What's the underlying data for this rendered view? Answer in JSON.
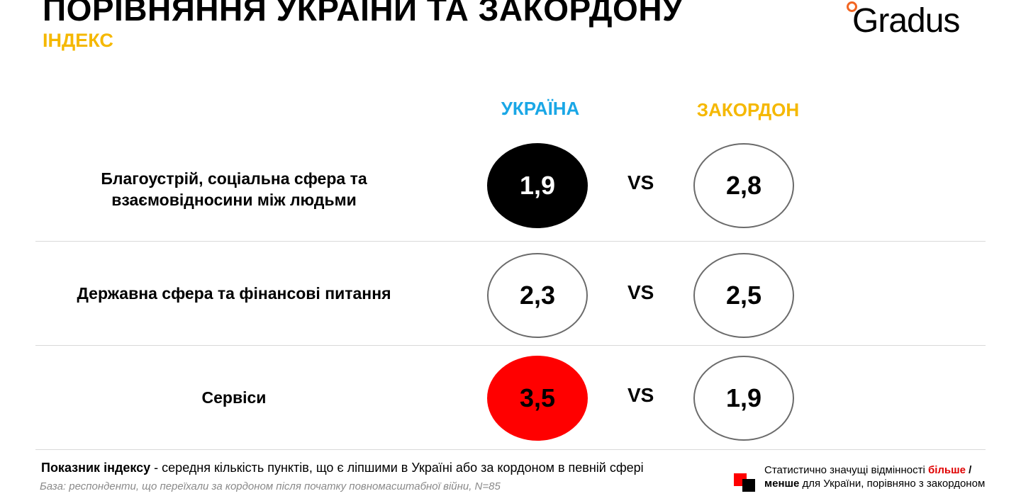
{
  "header": {
    "title": "ПОРІВНЯННЯ УКРАЇНИ ТА ЗАКОРДОНУ",
    "subtitle": "ІНДЕКС",
    "logo_text": "Gradus"
  },
  "columns": {
    "ukraine": "УКРАЇНА",
    "abroad": "ЗАКОРДОН",
    "vs": "VS"
  },
  "rows": [
    {
      "label_line1": "Благоустрій, соціальна сфера та",
      "label_line2": "взаємовідносини між людьми",
      "ukraine": "1,9",
      "abroad": "2,8",
      "ukraine_highlight": "less"
    },
    {
      "label_line1": "Державна сфера та фінансові питання",
      "label_line2": "",
      "ukraine": "2,3",
      "abroad": "2,5",
      "ukraine_highlight": "none"
    },
    {
      "label_line1": "Сервіси",
      "label_line2": "",
      "ukraine": "3,5",
      "abroad": "1,9",
      "ukraine_highlight": "more"
    }
  ],
  "footer": {
    "note_bold": "Показник індексу",
    "note_rest": " - середня кількість пунктів, що є ліпшими в Україні або за кордоном в певній сфері",
    "base": "База: респонденти, що переїхали за кордоном після початку повномасштабної війни, N=85",
    "legend_part1": "Статистично значущі відмінності ",
    "legend_more": "більше",
    "legend_sep": " /",
    "legend_less": "менше",
    "legend_part2": " для України, порівняно з закордоном"
  },
  "colors": {
    "ukraine_header": "#1aa7e6",
    "abroad_header": "#f5b800",
    "more": "#ff0000",
    "less": "#000000",
    "logo_dot": "#f26522"
  }
}
